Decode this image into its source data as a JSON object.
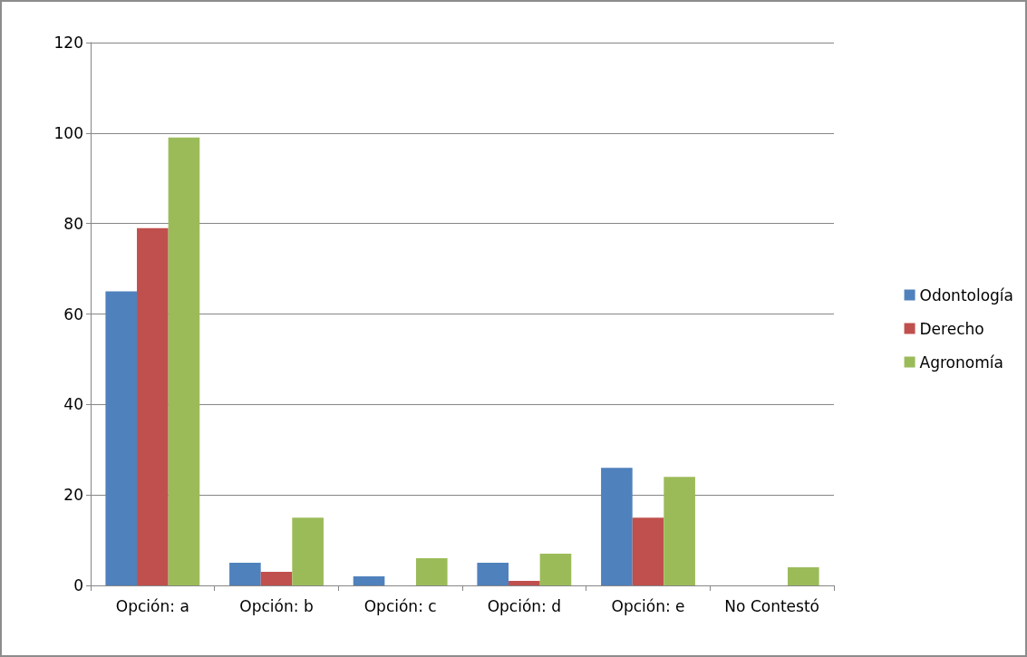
{
  "chart_data": {
    "type": "bar",
    "categories": [
      "Opción: a",
      "Opción: b",
      "Opción: c",
      "Opción: d",
      "Opción: e",
      "No Contestó"
    ],
    "series": [
      {
        "name": "Odontología",
        "color": "#4f81bd",
        "values": [
          65,
          5,
          2,
          5,
          26,
          0
        ]
      },
      {
        "name": "Derecho",
        "color": "#c0504d",
        "values": [
          79,
          3,
          0,
          1,
          15,
          0
        ]
      },
      {
        "name": "Agronomía",
        "color": "#9bbb59",
        "values": [
          99,
          15,
          6,
          7,
          24,
          4
        ]
      }
    ],
    "ylim": [
      0,
      120
    ],
    "yticks": [
      0,
      20,
      40,
      60,
      80,
      100,
      120
    ],
    "grid": "y",
    "legend": "right"
  }
}
